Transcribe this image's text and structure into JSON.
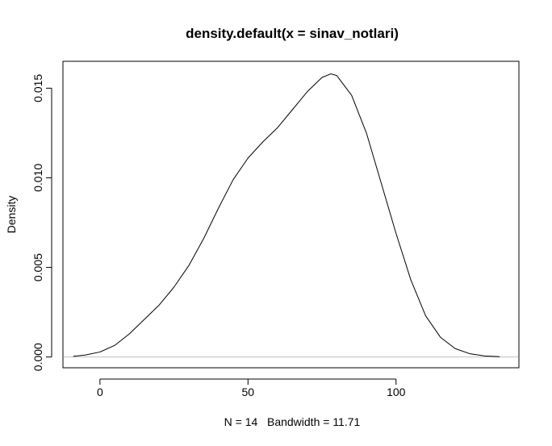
{
  "chart_data": {
    "type": "line",
    "title": "density.default(x = sinav_notlari)",
    "xlabel": "N = 14   Bandwidth = 11.71",
    "ylabel": "Density",
    "xlim": [
      -12.5,
      141.5
    ],
    "ylim": [
      -0.0006,
      0.0165
    ],
    "x_ticks": [
      0,
      50,
      100
    ],
    "x_tick_labels": [
      "0",
      "50",
      "100"
    ],
    "y_ticks": [
      0.0,
      0.005,
      0.01,
      0.015
    ],
    "y_tick_labels": [
      "0.000",
      "0.005",
      "0.010",
      "0.015"
    ],
    "baseline": 0,
    "grid": false,
    "legend": "none",
    "line_color": "#000000",
    "baseline_color": "#bebebe",
    "series": [
      {
        "x": [
          -9,
          -5,
          0,
          5,
          10,
          15,
          20,
          25,
          30,
          35,
          40,
          45,
          50,
          55,
          60,
          65,
          70,
          75,
          78,
          80,
          85,
          90,
          95,
          100,
          105,
          110,
          115,
          120,
          125,
          130,
          135
        ],
        "y": [
          4e-05,
          0.00011,
          0.00028,
          0.00065,
          0.0013,
          0.0021,
          0.0029,
          0.0039,
          0.0051,
          0.0066,
          0.0083,
          0.0099,
          0.0111,
          0.012,
          0.0128,
          0.0138,
          0.0148,
          0.0156,
          0.0158,
          0.0157,
          0.0146,
          0.0125,
          0.0097,
          0.0069,
          0.0043,
          0.0023,
          0.0011,
          0.00047,
          0.00018,
          6e-05,
          2e-05
        ]
      }
    ]
  }
}
